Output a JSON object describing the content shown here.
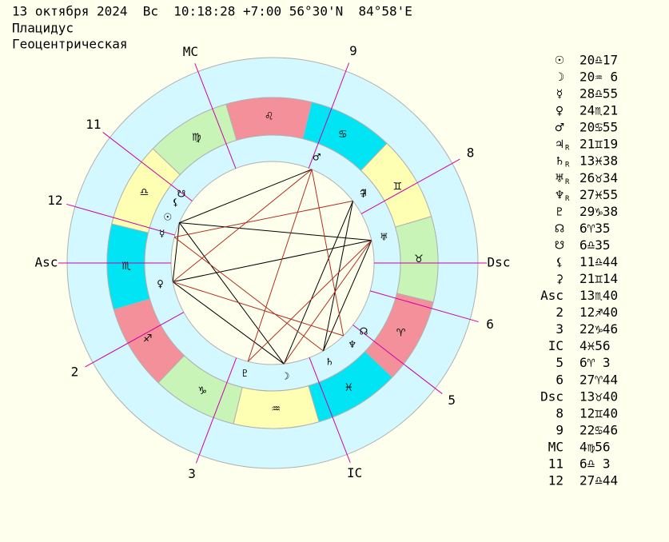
{
  "header": {
    "date_line": "13 октября 2024  Вс  10:18:28 +7:00 56°30'N  84°58'E",
    "house_system": "Плацидус",
    "mode": "Геоцентрическая"
  },
  "zodiac": [
    "♈",
    "♉",
    "♊",
    "♋",
    "♌",
    "♍",
    "♎",
    "♏",
    "♐",
    "♑",
    "♒",
    "♓"
  ],
  "planets": [
    {
      "glyph": "☉",
      "position": "20♎17"
    },
    {
      "glyph": "☽",
      "position": "20♒ 6"
    },
    {
      "glyph": "☿",
      "position": "28♎55"
    },
    {
      "glyph": "♀",
      "position": "24♏21"
    },
    {
      "glyph": "♂",
      "position": "20♋55"
    },
    {
      "glyph": "♃",
      "retrograde": "R",
      "position": "21♊19"
    },
    {
      "glyph": "♄",
      "retrograde": "R",
      "position": "13♓38"
    },
    {
      "glyph": "♅",
      "retrograde": "R",
      "position": "26♉34"
    },
    {
      "glyph": "♆",
      "retrograde": "R",
      "position": "27♓55"
    },
    {
      "glyph": "♇",
      "position": "29♑38"
    },
    {
      "glyph": "☊",
      "position": "6♈35"
    },
    {
      "glyph": "☋",
      "position": "6♎35"
    },
    {
      "glyph": "⚸",
      "position": "11♎44"
    },
    {
      "glyph": "⚳",
      "position": "21♊14"
    }
  ],
  "houses": [
    {
      "label": "Asc",
      "position": "13♏40"
    },
    {
      "label": "2",
      "position": "12♐40"
    },
    {
      "label": "3",
      "position": "22♑46"
    },
    {
      "label": "IC",
      "position": "4♓56"
    },
    {
      "label": "5",
      "position": "6♈ 3"
    },
    {
      "label": "6",
      "position": "27♈44"
    },
    {
      "label": "Dsc",
      "position": "13♉40"
    },
    {
      "label": "8",
      "position": "12♊40"
    },
    {
      "label": "9",
      "position": "22♋46"
    },
    {
      "label": "MC",
      "position": "4♍56"
    },
    {
      "label": "11",
      "position": "6♎ 3"
    },
    {
      "label": "12",
      "position": "27♎44"
    }
  ]
}
